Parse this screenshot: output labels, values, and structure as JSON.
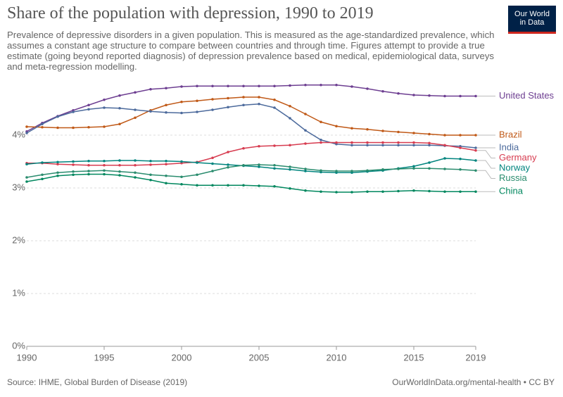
{
  "chart_data": {
    "type": "line",
    "title": "Share of the population with depression, 1990 to 2019",
    "subtitle": "Prevalence of depressive disorders in a given population. This is measured as the age-standardized prevalence, which assumes a constant age structure to compare between countries and through time. Figures attempt to provide a true estimate (going beyond reported diagnosis) of depression prevalence based on medical, epidemiological data, surveys and meta-regression modelling.",
    "source": "Source: IHME, Global Burden of Disease (2019)",
    "footer_url": "OurWorldInData.org/mental-health • CC BY",
    "logo": [
      "Our World",
      "in Data"
    ],
    "x": [
      1990,
      1991,
      1992,
      1993,
      1994,
      1995,
      1996,
      1997,
      1998,
      1999,
      2000,
      2001,
      2002,
      2003,
      2004,
      2005,
      2006,
      2007,
      2008,
      2009,
      2010,
      2011,
      2012,
      2013,
      2014,
      2015,
      2016,
      2017,
      2018,
      2019
    ],
    "xlim": [
      1990,
      2019
    ],
    "xticks": [
      1990,
      1995,
      2000,
      2005,
      2010,
      2015,
      2019
    ],
    "ylim": [
      0,
      5
    ],
    "yticks": [
      {
        "value": 0,
        "label": "0%"
      },
      {
        "value": 1,
        "label": "1%"
      },
      {
        "value": 2,
        "label": "2%"
      },
      {
        "value": 3,
        "label": "3%"
      },
      {
        "value": 4,
        "label": "4%"
      }
    ],
    "grid": true,
    "series": [
      {
        "name": "United States",
        "color": "#6d3e91",
        "values": [
          4.07,
          4.23,
          4.36,
          4.47,
          4.57,
          4.67,
          4.75,
          4.81,
          4.87,
          4.89,
          4.92,
          4.93,
          4.93,
          4.93,
          4.93,
          4.93,
          4.93,
          4.94,
          4.95,
          4.95,
          4.95,
          4.92,
          4.88,
          4.83,
          4.79,
          4.76,
          4.75,
          4.74,
          4.74,
          4.74
        ]
      },
      {
        "name": "Brazil",
        "color": "#c05917",
        "values": [
          4.16,
          4.15,
          4.14,
          4.14,
          4.15,
          4.16,
          4.21,
          4.33,
          4.47,
          4.57,
          4.63,
          4.65,
          4.68,
          4.7,
          4.72,
          4.72,
          4.67,
          4.55,
          4.4,
          4.25,
          4.17,
          4.13,
          4.11,
          4.08,
          4.06,
          4.04,
          4.02,
          4.0,
          4.0,
          4.0
        ]
      },
      {
        "name": "India",
        "color": "#4c6a9c",
        "values": [
          4.04,
          4.21,
          4.35,
          4.44,
          4.49,
          4.52,
          4.51,
          4.48,
          4.45,
          4.43,
          4.42,
          4.44,
          4.48,
          4.53,
          4.57,
          4.59,
          4.52,
          4.32,
          4.09,
          3.91,
          3.83,
          3.81,
          3.81,
          3.81,
          3.81,
          3.81,
          3.81,
          3.8,
          3.79,
          3.76
        ]
      },
      {
        "name": "Germany",
        "color": "#d73c50",
        "values": [
          3.47,
          3.47,
          3.45,
          3.44,
          3.43,
          3.43,
          3.43,
          3.43,
          3.44,
          3.45,
          3.47,
          3.49,
          3.57,
          3.68,
          3.75,
          3.79,
          3.8,
          3.81,
          3.84,
          3.86,
          3.86,
          3.86,
          3.86,
          3.86,
          3.86,
          3.86,
          3.85,
          3.81,
          3.76,
          3.71
        ]
      },
      {
        "name": "Norway",
        "color": "#00847e",
        "values": [
          3.45,
          3.48,
          3.49,
          3.5,
          3.51,
          3.51,
          3.52,
          3.52,
          3.51,
          3.51,
          3.5,
          3.48,
          3.46,
          3.44,
          3.42,
          3.4,
          3.37,
          3.35,
          3.32,
          3.3,
          3.29,
          3.29,
          3.31,
          3.33,
          3.37,
          3.41,
          3.48,
          3.56,
          3.55,
          3.52
        ]
      },
      {
        "name": "Russia",
        "color": "#2a8c6e",
        "values": [
          3.2,
          3.25,
          3.29,
          3.31,
          3.32,
          3.33,
          3.31,
          3.29,
          3.25,
          3.23,
          3.21,
          3.25,
          3.32,
          3.39,
          3.43,
          3.44,
          3.43,
          3.4,
          3.36,
          3.33,
          3.32,
          3.32,
          3.33,
          3.35,
          3.36,
          3.37,
          3.37,
          3.36,
          3.35,
          3.33
        ]
      },
      {
        "name": "China",
        "color": "#00875e",
        "values": [
          3.12,
          3.17,
          3.23,
          3.25,
          3.26,
          3.26,
          3.24,
          3.2,
          3.15,
          3.09,
          3.07,
          3.05,
          3.05,
          3.05,
          3.05,
          3.04,
          3.03,
          2.99,
          2.95,
          2.93,
          2.92,
          2.92,
          2.93,
          2.93,
          2.94,
          2.95,
          2.94,
          2.93,
          2.93,
          2.93
        ]
      }
    ]
  }
}
